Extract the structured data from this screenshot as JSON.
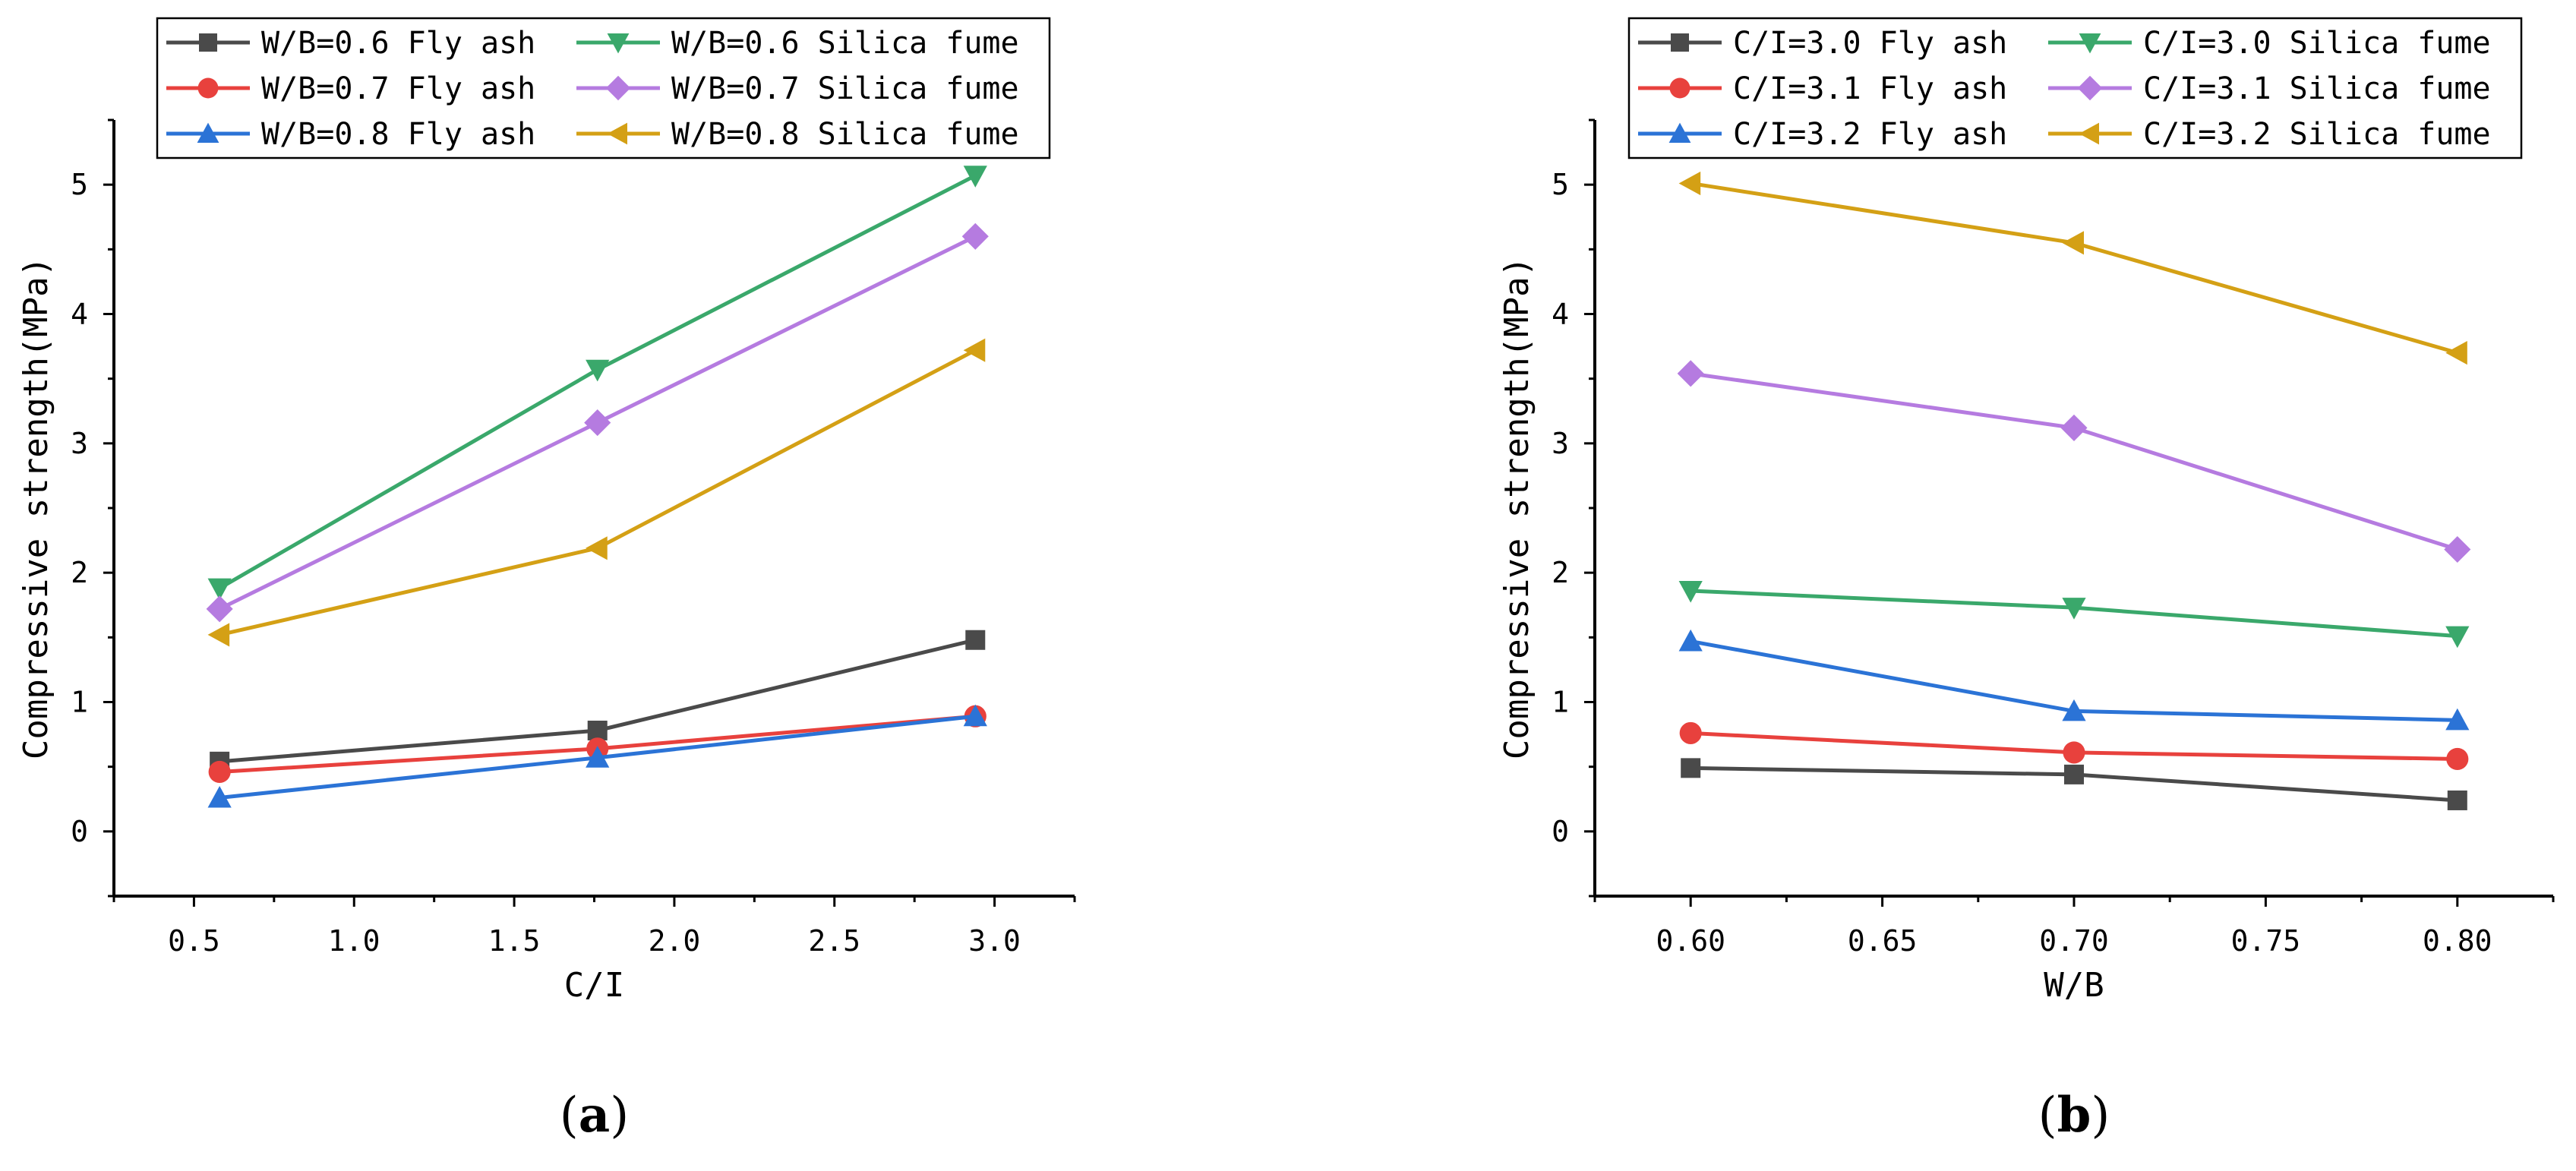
{
  "chart_data": [
    {
      "type": "line",
      "panel_label": "a",
      "xlabel": "C/I",
      "ylabel": "Compressive strength(MPa)",
      "xlim": [
        0.25,
        3.25
      ],
      "ylim": [
        -0.5,
        5.5
      ],
      "xticks": [
        0.5,
        1.0,
        1.5,
        2.0,
        2.5,
        3.0
      ],
      "xtick_labels": [
        "0.5",
        "1.0",
        "1.5",
        "2.0",
        "2.5",
        "3.0"
      ],
      "yticks": [
        0,
        1,
        2,
        3,
        4,
        5
      ],
      "ytick_labels": [
        "0",
        "1",
        "2",
        "3",
        "4",
        "5"
      ],
      "legend_position": "top-left",
      "x": [
        0.58,
        1.76,
        2.94
      ],
      "series": [
        {
          "name": "W/B=0.6 Fly ash",
          "marker": "square",
          "color": "#4a4a4a",
          "values": [
            0.54,
            0.78,
            1.48
          ]
        },
        {
          "name": "W/B=0.7 Fly ash",
          "marker": "circle",
          "color": "#e8413d",
          "values": [
            0.46,
            0.64,
            0.89
          ]
        },
        {
          "name": "W/B=0.8 Fly ash",
          "marker": "triangle-up",
          "color": "#2b73d6",
          "values": [
            0.26,
            0.57,
            0.89
          ]
        },
        {
          "name": "W/B=0.6 Silica fume",
          "marker": "triangle-down",
          "color": "#3aa86b",
          "values": [
            1.88,
            3.57,
            5.07
          ]
        },
        {
          "name": "W/B=0.7 Silica fume",
          "marker": "diamond",
          "color": "#b57be0",
          "values": [
            1.72,
            3.16,
            4.6
          ]
        },
        {
          "name": "W/B=0.8 Silica fume",
          "marker": "triangle-left",
          "color": "#d4a015",
          "values": [
            1.52,
            2.19,
            3.72
          ]
        }
      ]
    },
    {
      "type": "line",
      "panel_label": "b",
      "xlabel": "W/B",
      "ylabel": "Compressive strength(MPa)",
      "xlim": [
        0.575,
        0.825
      ],
      "ylim": [
        -0.5,
        5.5
      ],
      "xticks": [
        0.6,
        0.65,
        0.7,
        0.75,
        0.8
      ],
      "xtick_labels": [
        "0.60",
        "0.65",
        "0.70",
        "0.75",
        "0.80"
      ],
      "yticks": [
        0,
        1,
        2,
        3,
        4,
        5
      ],
      "ytick_labels": [
        "0",
        "1",
        "2",
        "3",
        "4",
        "5"
      ],
      "legend_position": "top-left",
      "x": [
        0.6,
        0.7,
        0.8
      ],
      "series": [
        {
          "name": "C/I=3.0 Fly ash",
          "marker": "square",
          "color": "#4a4a4a",
          "values": [
            0.49,
            0.44,
            0.24
          ]
        },
        {
          "name": "C/I=3.1 Fly ash",
          "marker": "circle",
          "color": "#e8413d",
          "values": [
            0.76,
            0.61,
            0.56
          ]
        },
        {
          "name": "C/I=3.2 Fly ash",
          "marker": "triangle-up",
          "color": "#2b73d6",
          "values": [
            1.47,
            0.93,
            0.86
          ]
        },
        {
          "name": "C/I=3.0 Silica fume",
          "marker": "triangle-down",
          "color": "#3aa86b",
          "values": [
            1.86,
            1.73,
            1.51
          ]
        },
        {
          "name": "C/I=3.1 Silica fume",
          "marker": "diamond",
          "color": "#b57be0",
          "values": [
            3.54,
            3.12,
            2.18
          ]
        },
        {
          "name": "C/I=3.2 Silica fume",
          "marker": "triangle-left",
          "color": "#d4a015",
          "values": [
            5.01,
            4.55,
            3.7
          ]
        }
      ]
    }
  ]
}
